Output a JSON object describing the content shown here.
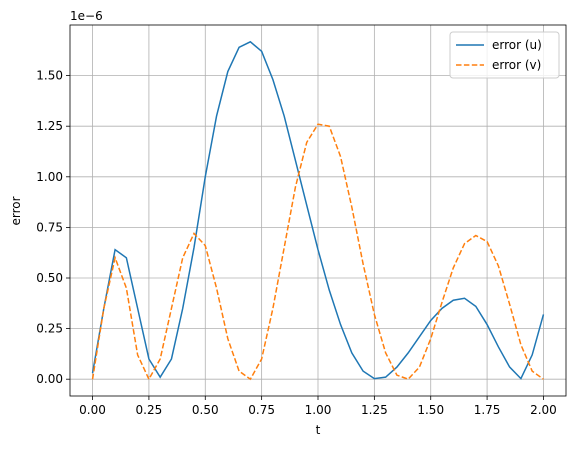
{
  "chart_data": {
    "type": "line",
    "x_label": "t",
    "y_label": "error",
    "offset_label": "1e−6",
    "x": [
      0,
      0.05,
      0.1,
      0.15,
      0.2,
      0.25,
      0.3,
      0.35,
      0.4,
      0.45,
      0.5,
      0.55,
      0.6,
      0.65,
      0.7,
      0.75,
      0.8,
      0.85,
      0.9,
      0.95,
      1.0,
      1.05,
      1.1,
      1.15,
      1.2,
      1.25,
      1.3,
      1.35,
      1.4,
      1.45,
      1.5,
      1.55,
      1.6,
      1.65,
      1.7,
      1.75,
      1.8,
      1.85,
      1.9,
      1.95,
      2.0
    ],
    "series": [
      {
        "name": "error (u)",
        "color": "#1f77b4",
        "dash": false,
        "values": [
          0.03,
          0.35,
          0.64,
          0.6,
          0.35,
          0.1,
          0.01,
          0.1,
          0.35,
          0.65,
          1.0,
          1.3,
          1.52,
          1.64,
          1.667,
          1.62,
          1.48,
          1.3,
          1.08,
          0.86,
          0.64,
          0.44,
          0.27,
          0.13,
          0.04,
          0.003,
          0.01,
          0.06,
          0.13,
          0.21,
          0.29,
          0.35,
          0.39,
          0.4,
          0.36,
          0.27,
          0.16,
          0.06,
          0.003,
          0.12,
          0.32
        ]
      },
      {
        "name": "error (v)",
        "color": "#ff7f0e",
        "dash": true,
        "values": [
          0,
          0.35,
          0.6,
          0.45,
          0.12,
          0,
          0.1,
          0.35,
          0.6,
          0.72,
          0.66,
          0.45,
          0.2,
          0.04,
          0,
          0.1,
          0.35,
          0.65,
          0.95,
          1.17,
          1.26,
          1.25,
          1.1,
          0.85,
          0.57,
          0.32,
          0.13,
          0.02,
          0,
          0.06,
          0.2,
          0.38,
          0.55,
          0.67,
          0.71,
          0.68,
          0.56,
          0.37,
          0.17,
          0.04,
          0
        ]
      }
    ],
    "xlim": [
      -0.1,
      2.1
    ],
    "ylim": [
      -0.083,
      1.75
    ],
    "xticks": [
      {
        "value": 0,
        "label": "0.00"
      },
      {
        "value": 0.25,
        "label": "0.25"
      },
      {
        "value": 0.5,
        "label": "0.50"
      },
      {
        "value": 0.75,
        "label": "0.75"
      },
      {
        "value": 1,
        "label": "1.00"
      },
      {
        "value": 1.25,
        "label": "1.25"
      },
      {
        "value": 1.5,
        "label": "1.50"
      },
      {
        "value": 1.75,
        "label": "1.75"
      },
      {
        "value": 2,
        "label": "2.00"
      }
    ],
    "yticks": [
      {
        "value": 0,
        "label": "0.00"
      },
      {
        "value": 0.25,
        "label": "0.25"
      },
      {
        "value": 0.5,
        "label": "0.50"
      },
      {
        "value": 0.75,
        "label": "0.75"
      },
      {
        "value": 1,
        "label": "1.00"
      },
      {
        "value": 1.25,
        "label": "1.25"
      },
      {
        "value": 1.5,
        "label": "1.50"
      }
    ],
    "grid": true,
    "legend": "upper right"
  }
}
